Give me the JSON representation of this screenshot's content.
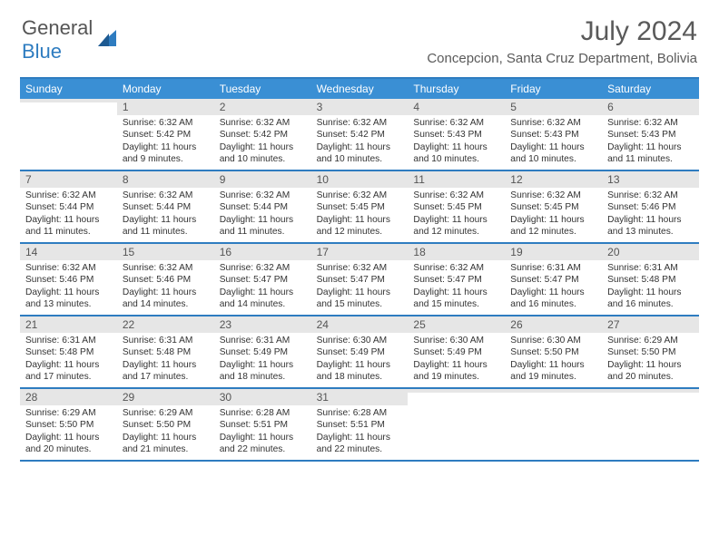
{
  "brand": {
    "part1": "General",
    "part2": "Blue"
  },
  "title": "July 2024",
  "location": "Concepcion, Santa Cruz Department, Bolivia",
  "colors": {
    "header_bg": "#3a8fd4",
    "rule": "#2e7cc0",
    "daynum_bg": "#e6e6e6",
    "text": "#333333"
  },
  "day_names": [
    "Sunday",
    "Monday",
    "Tuesday",
    "Wednesday",
    "Thursday",
    "Friday",
    "Saturday"
  ],
  "weeks": [
    [
      {
        "n": "",
        "sr": "",
        "ss": "",
        "dl": ""
      },
      {
        "n": "1",
        "sr": "Sunrise: 6:32 AM",
        "ss": "Sunset: 5:42 PM",
        "dl": "Daylight: 11 hours and 9 minutes."
      },
      {
        "n": "2",
        "sr": "Sunrise: 6:32 AM",
        "ss": "Sunset: 5:42 PM",
        "dl": "Daylight: 11 hours and 10 minutes."
      },
      {
        "n": "3",
        "sr": "Sunrise: 6:32 AM",
        "ss": "Sunset: 5:42 PM",
        "dl": "Daylight: 11 hours and 10 minutes."
      },
      {
        "n": "4",
        "sr": "Sunrise: 6:32 AM",
        "ss": "Sunset: 5:43 PM",
        "dl": "Daylight: 11 hours and 10 minutes."
      },
      {
        "n": "5",
        "sr": "Sunrise: 6:32 AM",
        "ss": "Sunset: 5:43 PM",
        "dl": "Daylight: 11 hours and 10 minutes."
      },
      {
        "n": "6",
        "sr": "Sunrise: 6:32 AM",
        "ss": "Sunset: 5:43 PM",
        "dl": "Daylight: 11 hours and 11 minutes."
      }
    ],
    [
      {
        "n": "7",
        "sr": "Sunrise: 6:32 AM",
        "ss": "Sunset: 5:44 PM",
        "dl": "Daylight: 11 hours and 11 minutes."
      },
      {
        "n": "8",
        "sr": "Sunrise: 6:32 AM",
        "ss": "Sunset: 5:44 PM",
        "dl": "Daylight: 11 hours and 11 minutes."
      },
      {
        "n": "9",
        "sr": "Sunrise: 6:32 AM",
        "ss": "Sunset: 5:44 PM",
        "dl": "Daylight: 11 hours and 11 minutes."
      },
      {
        "n": "10",
        "sr": "Sunrise: 6:32 AM",
        "ss": "Sunset: 5:45 PM",
        "dl": "Daylight: 11 hours and 12 minutes."
      },
      {
        "n": "11",
        "sr": "Sunrise: 6:32 AM",
        "ss": "Sunset: 5:45 PM",
        "dl": "Daylight: 11 hours and 12 minutes."
      },
      {
        "n": "12",
        "sr": "Sunrise: 6:32 AM",
        "ss": "Sunset: 5:45 PM",
        "dl": "Daylight: 11 hours and 12 minutes."
      },
      {
        "n": "13",
        "sr": "Sunrise: 6:32 AM",
        "ss": "Sunset: 5:46 PM",
        "dl": "Daylight: 11 hours and 13 minutes."
      }
    ],
    [
      {
        "n": "14",
        "sr": "Sunrise: 6:32 AM",
        "ss": "Sunset: 5:46 PM",
        "dl": "Daylight: 11 hours and 13 minutes."
      },
      {
        "n": "15",
        "sr": "Sunrise: 6:32 AM",
        "ss": "Sunset: 5:46 PM",
        "dl": "Daylight: 11 hours and 14 minutes."
      },
      {
        "n": "16",
        "sr": "Sunrise: 6:32 AM",
        "ss": "Sunset: 5:47 PM",
        "dl": "Daylight: 11 hours and 14 minutes."
      },
      {
        "n": "17",
        "sr": "Sunrise: 6:32 AM",
        "ss": "Sunset: 5:47 PM",
        "dl": "Daylight: 11 hours and 15 minutes."
      },
      {
        "n": "18",
        "sr": "Sunrise: 6:32 AM",
        "ss": "Sunset: 5:47 PM",
        "dl": "Daylight: 11 hours and 15 minutes."
      },
      {
        "n": "19",
        "sr": "Sunrise: 6:31 AM",
        "ss": "Sunset: 5:47 PM",
        "dl": "Daylight: 11 hours and 16 minutes."
      },
      {
        "n": "20",
        "sr": "Sunrise: 6:31 AM",
        "ss": "Sunset: 5:48 PM",
        "dl": "Daylight: 11 hours and 16 minutes."
      }
    ],
    [
      {
        "n": "21",
        "sr": "Sunrise: 6:31 AM",
        "ss": "Sunset: 5:48 PM",
        "dl": "Daylight: 11 hours and 17 minutes."
      },
      {
        "n": "22",
        "sr": "Sunrise: 6:31 AM",
        "ss": "Sunset: 5:48 PM",
        "dl": "Daylight: 11 hours and 17 minutes."
      },
      {
        "n": "23",
        "sr": "Sunrise: 6:31 AM",
        "ss": "Sunset: 5:49 PM",
        "dl": "Daylight: 11 hours and 18 minutes."
      },
      {
        "n": "24",
        "sr": "Sunrise: 6:30 AM",
        "ss": "Sunset: 5:49 PM",
        "dl": "Daylight: 11 hours and 18 minutes."
      },
      {
        "n": "25",
        "sr": "Sunrise: 6:30 AM",
        "ss": "Sunset: 5:49 PM",
        "dl": "Daylight: 11 hours and 19 minutes."
      },
      {
        "n": "26",
        "sr": "Sunrise: 6:30 AM",
        "ss": "Sunset: 5:50 PM",
        "dl": "Daylight: 11 hours and 19 minutes."
      },
      {
        "n": "27",
        "sr": "Sunrise: 6:29 AM",
        "ss": "Sunset: 5:50 PM",
        "dl": "Daylight: 11 hours and 20 minutes."
      }
    ],
    [
      {
        "n": "28",
        "sr": "Sunrise: 6:29 AM",
        "ss": "Sunset: 5:50 PM",
        "dl": "Daylight: 11 hours and 20 minutes."
      },
      {
        "n": "29",
        "sr": "Sunrise: 6:29 AM",
        "ss": "Sunset: 5:50 PM",
        "dl": "Daylight: 11 hours and 21 minutes."
      },
      {
        "n": "30",
        "sr": "Sunrise: 6:28 AM",
        "ss": "Sunset: 5:51 PM",
        "dl": "Daylight: 11 hours and 22 minutes."
      },
      {
        "n": "31",
        "sr": "Sunrise: 6:28 AM",
        "ss": "Sunset: 5:51 PM",
        "dl": "Daylight: 11 hours and 22 minutes."
      },
      {
        "n": "",
        "sr": "",
        "ss": "",
        "dl": ""
      },
      {
        "n": "",
        "sr": "",
        "ss": "",
        "dl": ""
      },
      {
        "n": "",
        "sr": "",
        "ss": "",
        "dl": ""
      }
    ]
  ]
}
